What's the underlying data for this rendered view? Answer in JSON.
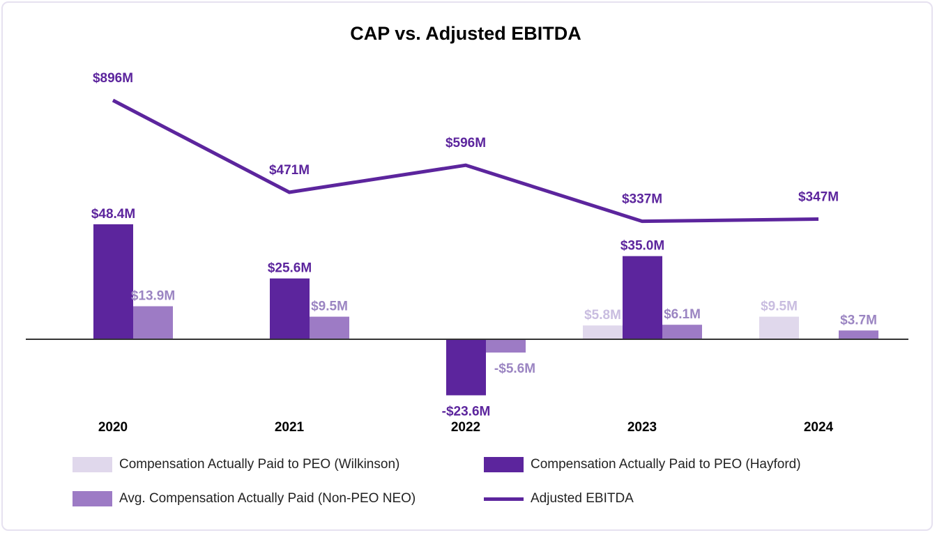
{
  "chart_data": {
    "type": "bar",
    "title": "CAP vs. Adjusted EBITDA",
    "categories": [
      "2020",
      "2021",
      "2022",
      "2023",
      "2024"
    ],
    "series": [
      {
        "name": "Compensation Actually Paid to PEO (Wilkinson)",
        "type": "bar",
        "color": "#e0d8ec",
        "label_color": "#c9bde0",
        "values": [
          null,
          null,
          null,
          5.8,
          9.5
        ],
        "labels": [
          "",
          "",
          "",
          "$5.8M",
          "$9.5M"
        ]
      },
      {
        "name": "Compensation Actually Paid to PEO (Hayford)",
        "type": "bar",
        "color": "#5c259d",
        "label_color": "#5c259d",
        "values": [
          48.4,
          25.6,
          -23.6,
          35.0,
          null
        ],
        "labels": [
          "$48.4M",
          "$25.6M",
          "-$23.6M",
          "$35.0M",
          ""
        ]
      },
      {
        "name": "Avg. Compensation Actually Paid (Non-PEO NEO)",
        "type": "bar",
        "color": "#9d7bc5",
        "label_color": "#9b85c2",
        "values": [
          13.9,
          9.5,
          -5.6,
          6.1,
          3.7
        ],
        "labels": [
          "$13.9M",
          "$9.5M",
          "-$5.6M",
          "$6.1M",
          "$3.7M"
        ]
      },
      {
        "name": "Adjusted EBITDA",
        "type": "line",
        "color": "#5c259d",
        "label_color": "#5c259d",
        "values": [
          896,
          471,
          596,
          337,
          347
        ],
        "labels": [
          "$896M",
          "$471M",
          "$596M",
          "$337M",
          "$347M"
        ]
      }
    ],
    "bar_unit": "$M",
    "line_unit": "$M",
    "legend_position": "bottom",
    "grid": false
  }
}
